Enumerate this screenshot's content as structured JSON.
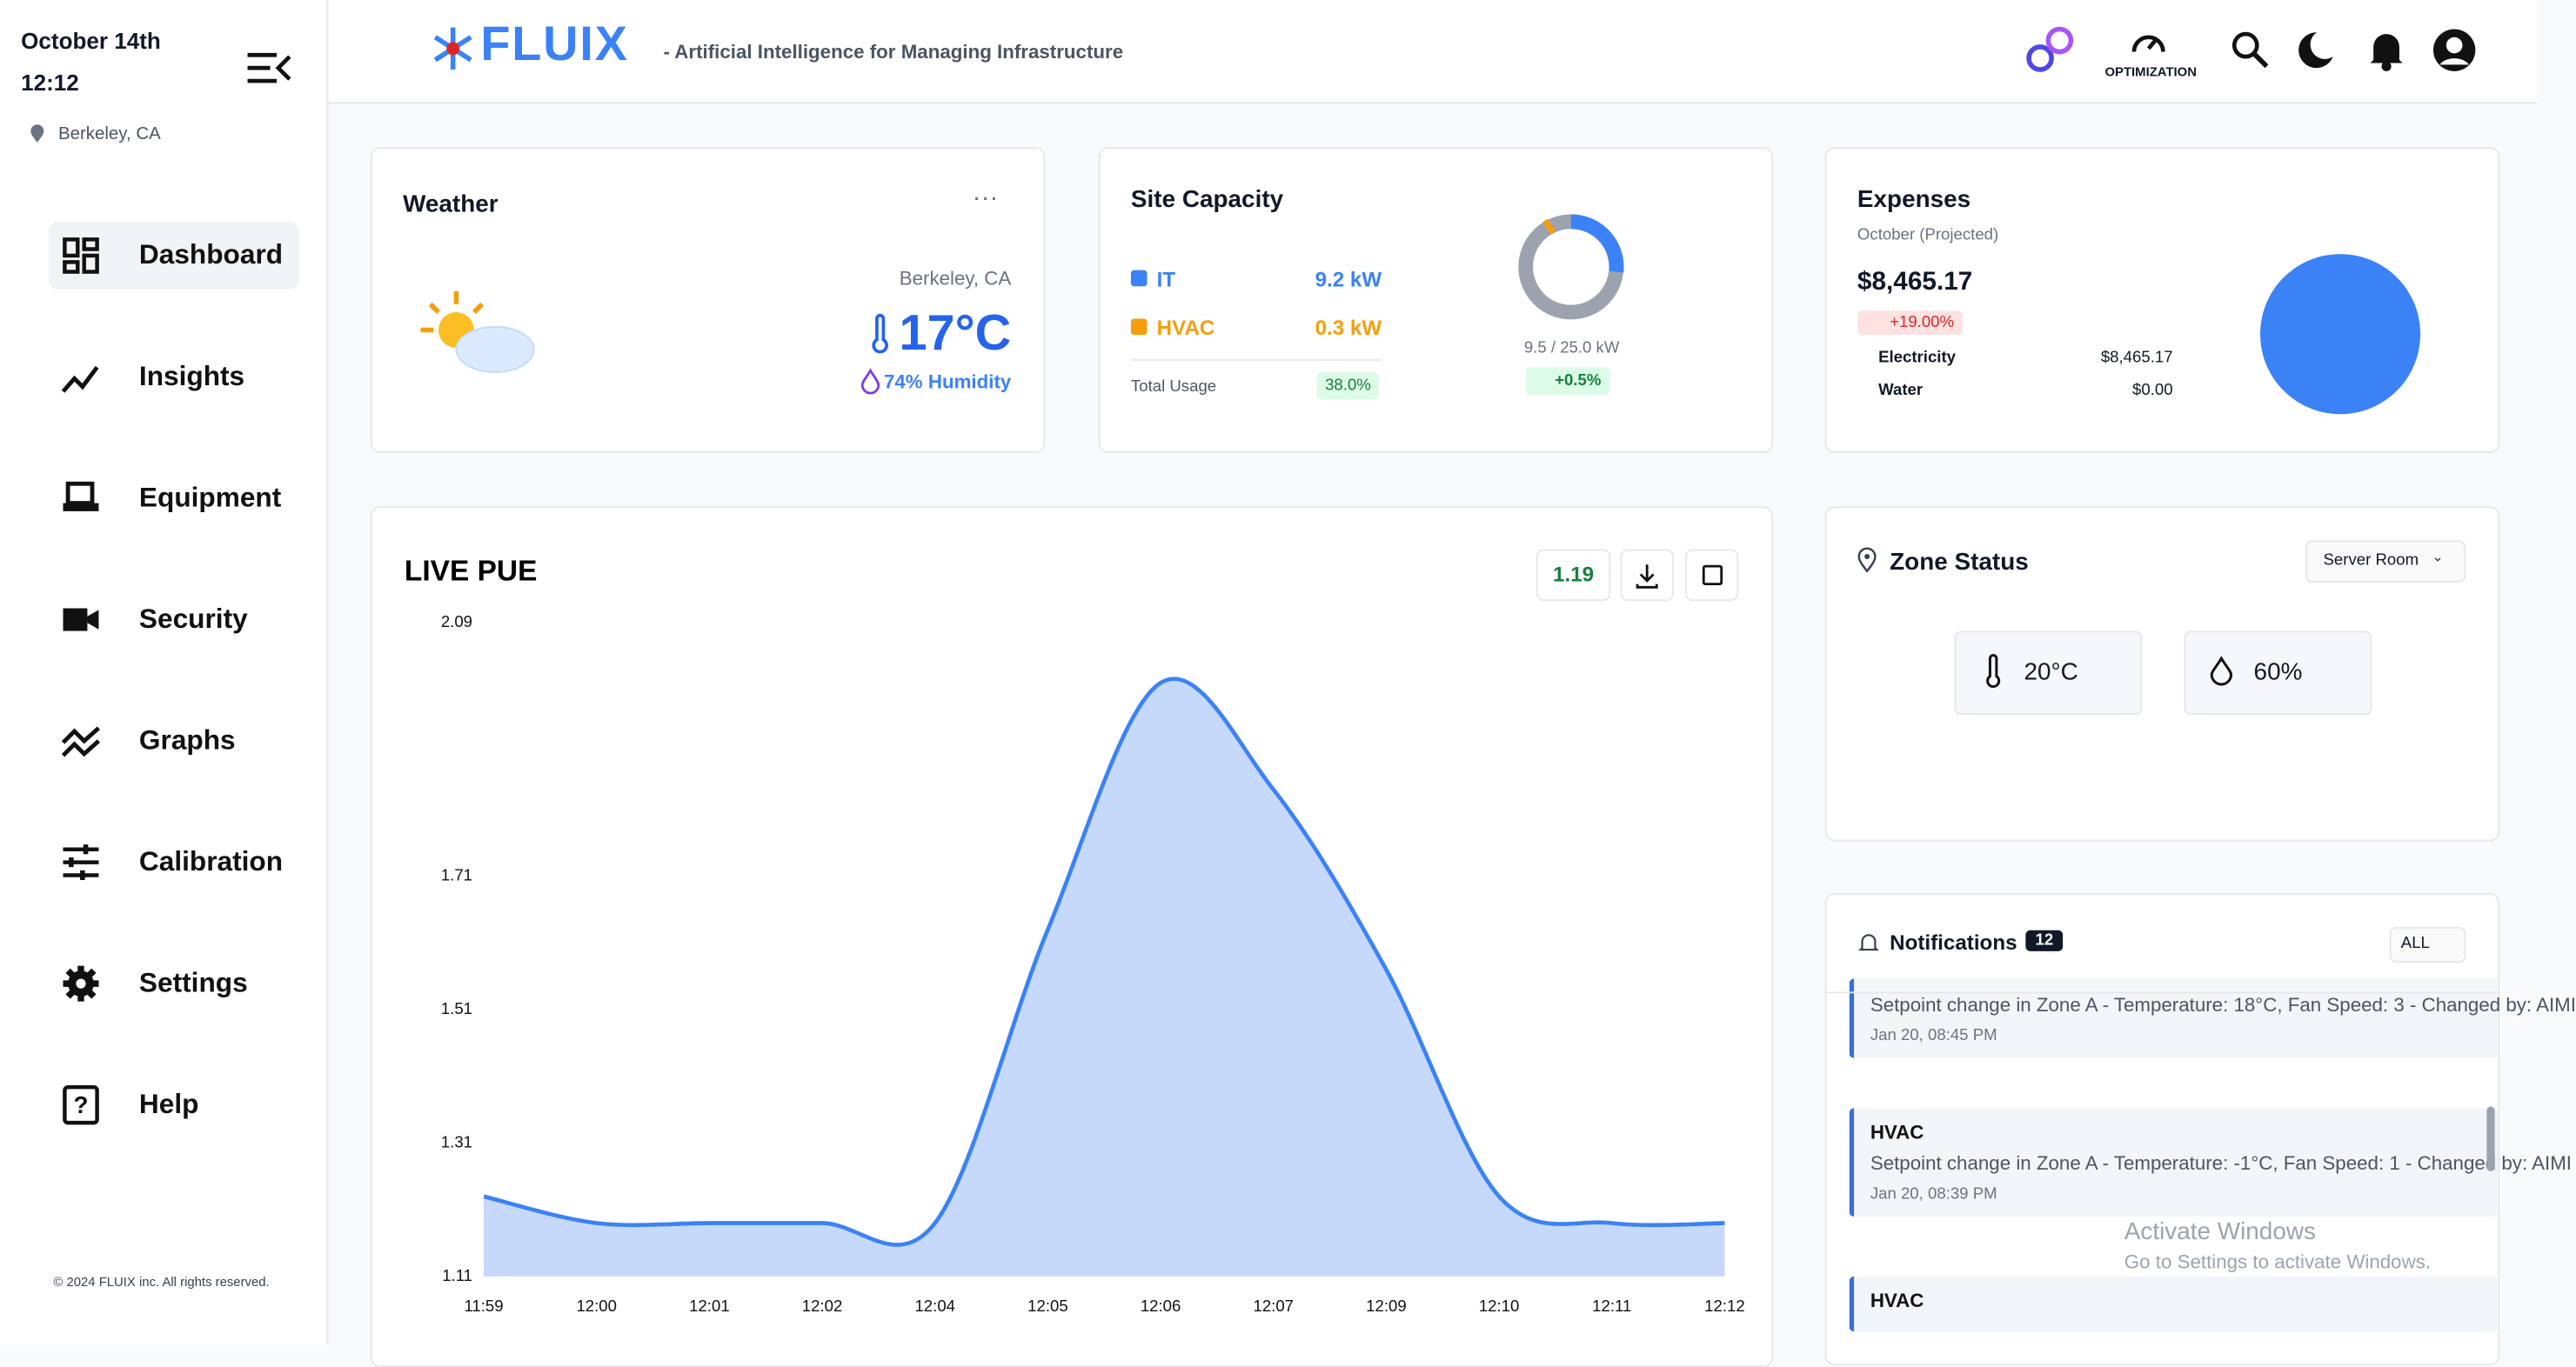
{
  "sidebar": {
    "date": "October  14th",
    "time": "12:12",
    "location": "Berkeley, CA",
    "nav": [
      "Dashboard",
      "Insights",
      "Equipment",
      "Security",
      "Graphs",
      "Calibration",
      "Settings",
      "Help"
    ],
    "footer": "© 2024 FLUIX inc. All rights reserved."
  },
  "header": {
    "logo": "FLUIX",
    "tagline": "- Artificial Intelligence for Managing Infrastructure",
    "optimization": "OPTIMIZATION"
  },
  "weather": {
    "title": "Weather",
    "location": "Berkeley, CA",
    "temperature": "17°C",
    "humidity": "74% Humidity"
  },
  "site_capacity": {
    "title": "Site Capacity",
    "items": [
      {
        "label": "IT",
        "value": "9.2 kW"
      },
      {
        "label": "HVAC",
        "value": "0.3 kW"
      }
    ],
    "total_label": "Total Usage",
    "total_value": "38.0%",
    "usage": "9.5 / 25.0 kW",
    "change": "+0.5%"
  },
  "expenses": {
    "title": "Expenses",
    "period": "October (Projected)",
    "amount": "$8,465.17",
    "change": "+19.00%",
    "items": [
      {
        "label": "Electricity",
        "value": "$8,465.17"
      },
      {
        "label": "Water",
        "value": "$0.00"
      }
    ]
  },
  "chart_data": {
    "type": "area",
    "title": "LIVE PUE",
    "current_value": "1.19",
    "categories": [
      "11:59",
      "12:00",
      "12:01",
      "12:02",
      "12:04",
      "12:05",
      "12:06",
      "12:07",
      "12:09",
      "12:10",
      "12:11",
      "12:12"
    ],
    "values": [
      1.23,
      1.19,
      1.19,
      1.19,
      1.19,
      1.63,
      2.0,
      1.84,
      1.57,
      1.23,
      1.19,
      1.19
    ],
    "color": "#3b82f6",
    "fill_color": "#c6d9fb",
    "ylim": [
      1.11,
      2.09
    ],
    "yticks": [
      2.09,
      1.71,
      1.51,
      1.31,
      1.11
    ]
  },
  "zone_status": {
    "title": "Zone Status",
    "zone": "Server Room",
    "temperature": "20°C",
    "humidity": "60%"
  },
  "notifications": {
    "title": "Notifications",
    "count": "12",
    "filter": "ALL",
    "items": [
      {
        "text": "Setpoint change in Zone A - Temperature: 18°C, Fan Speed: 3 - Changed by: AIMI",
        "time": "Jan 20, 08:45 PM"
      },
      {
        "title": "HVAC",
        "text": "Setpoint change in Zone A - Temperature: -1°C, Fan Speed: 1 - Changed by: AIMI",
        "time": "Jan 20, 08:39 PM"
      },
      {
        "title": "HVAC"
      }
    ]
  },
  "watermark": {
    "title": "Activate Windows",
    "subtitle": "Go to Settings to activate Windows."
  }
}
